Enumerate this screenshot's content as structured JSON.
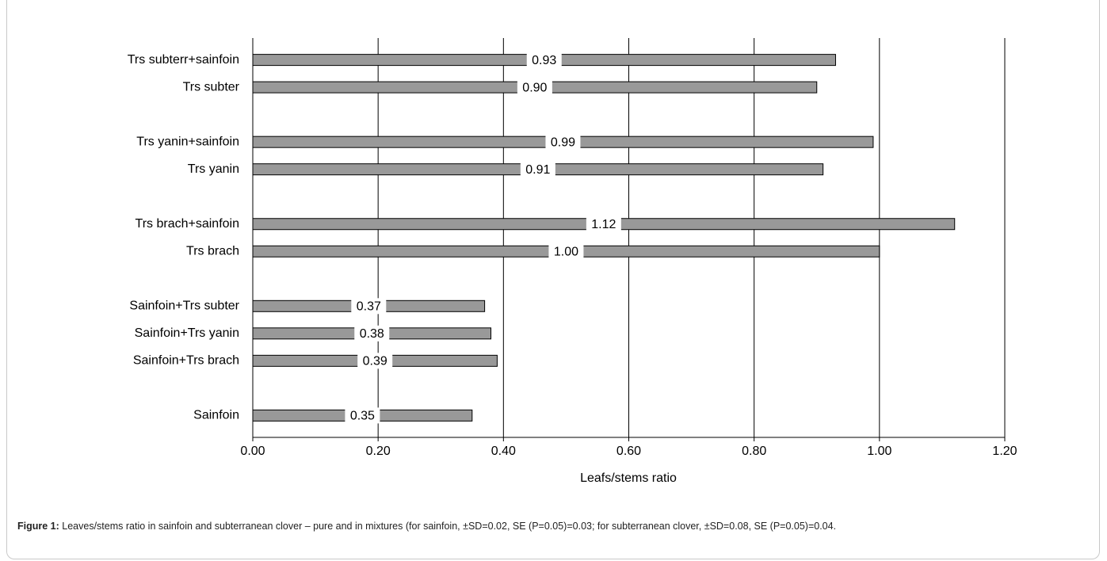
{
  "chart_data": {
    "type": "bar",
    "orientation": "horizontal",
    "categories": [
      "Trs subterr+sainfoin",
      "Trs subter",
      null,
      "Trs yanin+sainfoin",
      "Trs yanin",
      null,
      "Trs brach+sainfoin",
      "Trs brach",
      null,
      "Sainfoin+Trs subter",
      "Sainfoin+Trs yanin",
      "Sainfoin+Trs brach",
      null,
      "Sainfoin"
    ],
    "values": [
      0.93,
      0.9,
      null,
      0.99,
      0.91,
      null,
      1.12,
      1.0,
      null,
      0.37,
      0.38,
      0.39,
      null,
      0.35
    ],
    "value_labels": [
      "0.93",
      "0.90",
      null,
      "0.99",
      "0.91",
      null,
      "1.12",
      "1.00",
      null,
      "0.37",
      "0.38",
      "0.39",
      null,
      "0.35"
    ],
    "color": "#999999",
    "xlabel": "Leafs/stems ratio",
    "xlim": [
      0,
      1.2
    ],
    "xticks": [
      {
        "value": 0,
        "label": "0.00"
      },
      {
        "value": 0.2,
        "label": "0.20"
      },
      {
        "value": 0.4,
        "label": "0.40"
      },
      {
        "value": 0.6,
        "label": "0.60"
      },
      {
        "value": 0.8,
        "label": "0.80"
      },
      {
        "value": 1,
        "label": "1.00"
      },
      {
        "value": 1.2,
        "label": "1.20"
      }
    ],
    "grid": true
  },
  "caption": {
    "label": "Figure 1:",
    "text": "Leaves/stems ratio in sainfoin and subterranean clover – pure and in mixtures (for sainfoin, ±SD=0.02, SE (P=0.05)=0.03; for subterranean clover, ±SD=0.08, SE (P=0.05)=0.04."
  }
}
